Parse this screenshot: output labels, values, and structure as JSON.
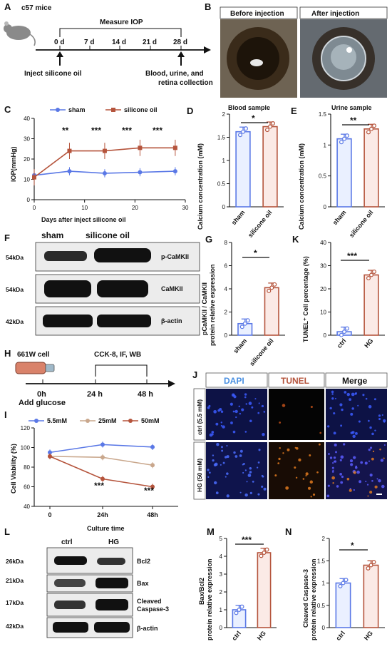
{
  "panels": {
    "A": {
      "label": "A",
      "animal": "c57 mice",
      "measure": "Measure IOP",
      "days": [
        "0 d",
        "7 d",
        "14 d",
        "21 d",
        "28 d"
      ],
      "inject": "Inject silicone oil",
      "collect": [
        "Blood, urine, and",
        "retina collection"
      ]
    },
    "B": {
      "label": "B",
      "before": "Before injection",
      "after": "After injection"
    },
    "C": {
      "label": "C",
      "ylabel": "IOP(mmHg)",
      "xlabel": "Days after inject silicone oil",
      "sig": [
        "**",
        "***",
        "***",
        "***"
      ]
    },
    "D": {
      "label": "D",
      "title": "Blood sample",
      "ylabel": "Calcium concentration (mM)",
      "sig": "*"
    },
    "E": {
      "label": "E",
      "title": "Urine sample",
      "ylabel": "Calcium concentration (mM)",
      "sig": "**"
    },
    "F": {
      "label": "F",
      "header_sham": "sham",
      "header_oil": "silicone oil",
      "kda": [
        "54kDa",
        "54kDa",
        "42kDa"
      ],
      "bands": [
        "p-CaMKII",
        "CaMKII",
        "β-actin"
      ]
    },
    "G": {
      "label": "G",
      "ylabel1": "pCaMKII / CaMKII",
      "ylabel2": "protein relative expression",
      "sig": "*"
    },
    "K": {
      "label": "K",
      "ylabel": "TUNEL⁺ Cell percentage (%)",
      "sig": "***"
    },
    "H": {
      "label": "H",
      "cell": "661W cell",
      "assays": "CCK-8, IF, WB",
      "times": [
        "0h",
        "24 h",
        "48 h"
      ],
      "glucose": "Add glucose"
    },
    "I": {
      "label": "I",
      "ylabel": "Cell Viability (%)",
      "xlabel": "Culture time",
      "sig": [
        "***",
        "***"
      ]
    },
    "J": {
      "label": "J",
      "cols": [
        "DAPI",
        "TUNEL",
        "Merge"
      ],
      "rows": [
        "ctrl (5.5 mM)",
        "HG (50 mM)"
      ]
    },
    "L": {
      "label": "L",
      "header_ctrl": "ctrl",
      "header_hg": "HG",
      "kda": [
        "26kDa",
        "21kDa",
        "17kDa",
        "42kDa"
      ],
      "bands": [
        "Bcl2",
        "Bax",
        "Cleaved",
        "Caspase-3",
        "β-actin"
      ]
    },
    "M": {
      "label": "M",
      "ylabel1": "Bax/Bcl2",
      "ylabel2": "protein relative expression",
      "sig": "***"
    },
    "N": {
      "label": "N",
      "ylabel1": "Cleaved Caspase-3",
      "ylabel2": "protein relative expression",
      "sig": "*"
    }
  },
  "colors": {
    "blue": "#5a78e6",
    "brown": "#b5543c",
    "tan": "#c9a78c",
    "bar_fill_brown": "#fbeae6",
    "bar_fill_blue": "#eaf0ff"
  },
  "chart_data": [
    {
      "panel": "C",
      "type": "line",
      "x": [
        0,
        7,
        14,
        21,
        28
      ],
      "xticks": [
        0,
        10,
        20,
        30
      ],
      "ylim": [
        0,
        40
      ],
      "yticks": [
        0,
        10,
        20,
        30,
        40
      ],
      "series": [
        {
          "name": "sham",
          "values": [
            12,
            14,
            13,
            13.5,
            14
          ]
        },
        {
          "name": "silicone oil",
          "values": [
            11,
            24,
            24,
            25.5,
            25.5
          ]
        }
      ]
    },
    {
      "panel": "D",
      "type": "bar",
      "categories": [
        "sham",
        "silicone oil"
      ],
      "values": [
        1.62,
        1.73
      ],
      "ylim": [
        0,
        2.0
      ],
      "yticks": [
        0,
        0.5,
        1.0,
        1.5,
        2.0
      ]
    },
    {
      "panel": "E",
      "type": "bar",
      "categories": [
        "sham",
        "silicone oil"
      ],
      "values": [
        1.1,
        1.26
      ],
      "ylim": [
        0,
        1.5
      ],
      "yticks": [
        0,
        0.5,
        1.0,
        1.5
      ]
    },
    {
      "panel": "G",
      "type": "bar",
      "categories": [
        "sham",
        "silicone oil"
      ],
      "values": [
        1.0,
        4.1
      ],
      "ylim": [
        0,
        8
      ],
      "yticks": [
        0,
        2,
        4,
        6,
        8
      ]
    },
    {
      "panel": "K",
      "type": "bar",
      "categories": [
        "ctrl",
        "HG"
      ],
      "values": [
        1.5,
        26
      ],
      "ylim": [
        0,
        40
      ],
      "yticks": [
        0,
        10,
        20,
        30,
        40
      ]
    },
    {
      "panel": "I",
      "type": "line",
      "categories": [
        "0",
        "24h",
        "48h"
      ],
      "ylim": [
        40,
        120
      ],
      "yticks": [
        40,
        60,
        80,
        100,
        120
      ],
      "series": [
        {
          "name": "5.5mM",
          "values": [
            95,
            103,
            100.5
          ]
        },
        {
          "name": "25mM",
          "values": [
            91,
            90,
            82
          ]
        },
        {
          "name": "50mM",
          "values": [
            91,
            68,
            60
          ]
        }
      ]
    },
    {
      "panel": "M",
      "type": "bar",
      "categories": [
        "ctrl",
        "HG"
      ],
      "values": [
        1.0,
        4.2
      ],
      "ylim": [
        0,
        5
      ],
      "yticks": [
        0,
        1,
        2,
        3,
        4,
        5
      ]
    },
    {
      "panel": "N",
      "type": "bar",
      "categories": [
        "ctrl",
        "HG"
      ],
      "values": [
        1.0,
        1.4
      ],
      "ylim": [
        0,
        2.0
      ],
      "yticks": [
        0,
        0.5,
        1.0,
        1.5,
        2.0
      ]
    }
  ]
}
